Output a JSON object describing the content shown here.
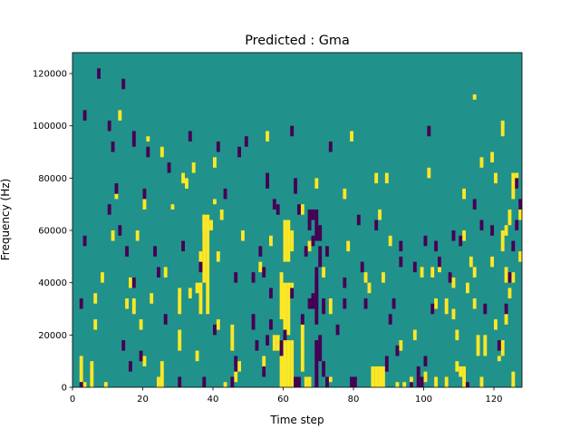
{
  "chart_data": {
    "type": "heatmap",
    "title": "Predicted : Gma",
    "xlabel": "Time step",
    "ylabel": "Frequency (Hz)",
    "xlim": [
      0,
      128
    ],
    "ylim": [
      0,
      128000
    ],
    "x_ticks": [
      0,
      20,
      40,
      60,
      80,
      100,
      120
    ],
    "y_ticks": [
      0,
      20000,
      40000,
      60000,
      80000,
      100000,
      120000
    ],
    "y_tick_labels": [
      "0",
      "20000",
      "40000",
      "60000",
      "80000",
      "100000",
      "120000"
    ],
    "grid": false,
    "legend": "none",
    "n_time_steps": 128,
    "n_freq_bins": 64,
    "freq_bin_width_hz": 2000,
    "colors": {
      "background": "#21918c",
      "low": "#440154",
      "high": "#fde725"
    },
    "cell_value_legend": {
      "low": -1,
      "mid": 0,
      "high": 1
    },
    "high_cells": [
      [
        2,
        1,
        5
      ],
      [
        3,
        0,
        0
      ],
      [
        5,
        0,
        4
      ],
      [
        6,
        11,
        12
      ],
      [
        6,
        16,
        17
      ],
      [
        8,
        20,
        21
      ],
      [
        9,
        0,
        0
      ],
      [
        11,
        28,
        29
      ],
      [
        12,
        36,
        36
      ],
      [
        13,
        51,
        52
      ],
      [
        15,
        15,
        16
      ],
      [
        16,
        19,
        20
      ],
      [
        17,
        14,
        16
      ],
      [
        18,
        28,
        29
      ],
      [
        19,
        11,
        12
      ],
      [
        20,
        34,
        35
      ],
      [
        20,
        4,
        5
      ],
      [
        21,
        47,
        47
      ],
      [
        22,
        16,
        17
      ],
      [
        24,
        0,
        1
      ],
      [
        25,
        44,
        45
      ],
      [
        25,
        0,
        4
      ],
      [
        26,
        21,
        22
      ],
      [
        28,
        34,
        34
      ],
      [
        30,
        7,
        10
      ],
      [
        30,
        14,
        18
      ],
      [
        31,
        39,
        40
      ],
      [
        32,
        38,
        39
      ],
      [
        33,
        17,
        18
      ],
      [
        34,
        41,
        42
      ],
      [
        35,
        5,
        6
      ],
      [
        35,
        18,
        19
      ],
      [
        36,
        14,
        19
      ],
      [
        36,
        23,
        25
      ],
      [
        37,
        20,
        32
      ],
      [
        37,
        30,
        32
      ],
      [
        38,
        14,
        32
      ],
      [
        39,
        30,
        31
      ],
      [
        40,
        35,
        35
      ],
      [
        40,
        42,
        43
      ],
      [
        41,
        11,
        12
      ],
      [
        41,
        24,
        25
      ],
      [
        42,
        32,
        33
      ],
      [
        43,
        0,
        0
      ],
      [
        45,
        7,
        11
      ],
      [
        46,
        1,
        3
      ],
      [
        47,
        3,
        4
      ],
      [
        48,
        28,
        29
      ],
      [
        53,
        22,
        23
      ],
      [
        54,
        3,
        5
      ],
      [
        55,
        47,
        48
      ],
      [
        56,
        27,
        28
      ],
      [
        57,
        7,
        9
      ],
      [
        58,
        7,
        9
      ],
      [
        59,
        0,
        8
      ],
      [
        59,
        13,
        21
      ],
      [
        60,
        0,
        8
      ],
      [
        60,
        10,
        19
      ],
      [
        60,
        24,
        31
      ],
      [
        61,
        0,
        8
      ],
      [
        61,
        10,
        19
      ],
      [
        61,
        24,
        31
      ],
      [
        62,
        18,
        19
      ],
      [
        62,
        26,
        29
      ],
      [
        62,
        0,
        8
      ],
      [
        65,
        3,
        11
      ],
      [
        65,
        33,
        34
      ],
      [
        66,
        0,
        1
      ],
      [
        67,
        0,
        1
      ],
      [
        67,
        26,
        27
      ],
      [
        69,
        38,
        39
      ],
      [
        71,
        21,
        22
      ],
      [
        73,
        1,
        1
      ],
      [
        73,
        14,
        16
      ],
      [
        77,
        36,
        37
      ],
      [
        78,
        26,
        27
      ],
      [
        79,
        47,
        48
      ],
      [
        80,
        0,
        0
      ],
      [
        83,
        20,
        21
      ],
      [
        84,
        18,
        19
      ],
      [
        85,
        0,
        3
      ],
      [
        86,
        0,
        3
      ],
      [
        86,
        39,
        40
      ],
      [
        87,
        0,
        3
      ],
      [
        87,
        32,
        33
      ],
      [
        88,
        0,
        3
      ],
      [
        88,
        20,
        21
      ],
      [
        89,
        39,
        40
      ],
      [
        90,
        27,
        28
      ],
      [
        92,
        0,
        0
      ],
      [
        93,
        7,
        8
      ],
      [
        94,
        0,
        0
      ],
      [
        96,
        0,
        1
      ],
      [
        97,
        9,
        10
      ],
      [
        99,
        21,
        22
      ],
      [
        101,
        40,
        41
      ],
      [
        102,
        21,
        22
      ],
      [
        103,
        0,
        1
      ],
      [
        104,
        22,
        24
      ],
      [
        106,
        0,
        1
      ],
      [
        108,
        13,
        14
      ],
      [
        108,
        19,
        20
      ],
      [
        109,
        3,
        4
      ],
      [
        110,
        2,
        3
      ],
      [
        111,
        0,
        3
      ],
      [
        111,
        28,
        29
      ],
      [
        112,
        18,
        19
      ],
      [
        113,
        23,
        24
      ],
      [
        114,
        21,
        22
      ],
      [
        114,
        15,
        16
      ],
      [
        114,
        55,
        55
      ],
      [
        115,
        6,
        9
      ],
      [
        116,
        0,
        1
      ],
      [
        117,
        6,
        9
      ],
      [
        119,
        23,
        24
      ],
      [
        119,
        43,
        44
      ],
      [
        120,
        11,
        12
      ],
      [
        121,
        5,
        5
      ],
      [
        122,
        6,
        8
      ],
      [
        123,
        12,
        14
      ],
      [
        123,
        20,
        22
      ],
      [
        124,
        31,
        33
      ],
      [
        125,
        20,
        21
      ],
      [
        125,
        0,
        2
      ],
      [
        125,
        36,
        37
      ],
      [
        100,
        1,
        2
      ],
      [
        103,
        15,
        16
      ],
      [
        106,
        14,
        16
      ],
      [
        109,
        9,
        10
      ],
      [
        111,
        36,
        37
      ],
      [
        116,
        42,
        43
      ],
      [
        120,
        39,
        40
      ],
      [
        122,
        26,
        29
      ],
      [
        122,
        48,
        50
      ],
      [
        123,
        29,
        30
      ],
      [
        124,
        17,
        18
      ],
      [
        125,
        38,
        40
      ],
      [
        126,
        38,
        40
      ],
      [
        127,
        24,
        25
      ],
      [
        127,
        32,
        34
      ]
    ],
    "low_cells": [
      [
        2,
        0,
        0
      ],
      [
        2,
        15,
        16
      ],
      [
        3,
        51,
        52
      ],
      [
        3,
        27,
        28
      ],
      [
        7,
        59,
        60
      ],
      [
        10,
        49,
        50
      ],
      [
        10,
        33,
        34
      ],
      [
        11,
        45,
        46
      ],
      [
        12,
        37,
        38
      ],
      [
        13,
        29,
        30
      ],
      [
        14,
        7,
        8
      ],
      [
        14,
        57,
        58
      ],
      [
        15,
        25,
        26
      ],
      [
        16,
        3,
        4
      ],
      [
        17,
        19,
        20
      ],
      [
        17,
        46,
        48
      ],
      [
        19,
        5,
        6
      ],
      [
        20,
        36,
        37
      ],
      [
        21,
        44,
        45
      ],
      [
        23,
        25,
        26
      ],
      [
        24,
        21,
        22
      ],
      [
        26,
        12,
        13
      ],
      [
        27,
        41,
        42
      ],
      [
        30,
        0,
        1
      ],
      [
        31,
        26,
        27
      ],
      [
        33,
        47,
        48
      ],
      [
        36,
        22,
        23
      ],
      [
        37,
        0,
        1
      ],
      [
        40,
        10,
        11
      ],
      [
        41,
        45,
        46
      ],
      [
        45,
        0,
        1
      ],
      [
        46,
        20,
        21
      ],
      [
        46,
        3,
        5
      ],
      [
        47,
        44,
        45
      ],
      [
        49,
        46,
        47
      ],
      [
        51,
        11,
        13
      ],
      [
        51,
        20,
        21
      ],
      [
        52,
        7,
        8
      ],
      [
        53,
        25,
        26
      ],
      [
        54,
        21,
        22
      ],
      [
        54,
        2,
        3
      ],
      [
        55,
        8,
        9
      ],
      [
        55,
        38,
        40
      ],
      [
        56,
        11,
        12
      ],
      [
        56,
        17,
        18
      ],
      [
        57,
        34,
        35
      ],
      [
        58,
        33,
        34
      ],
      [
        59,
        6,
        8
      ],
      [
        60,
        9,
        10
      ],
      [
        62,
        17,
        18
      ],
      [
        62,
        48,
        49
      ],
      [
        63,
        0,
        1
      ],
      [
        64,
        0,
        1
      ],
      [
        64,
        33,
        34
      ],
      [
        65,
        12,
        13
      ],
      [
        66,
        25,
        26
      ],
      [
        67,
        32,
        33
      ],
      [
        67,
        15,
        16
      ],
      [
        68,
        15,
        17
      ],
      [
        68,
        27,
        28
      ],
      [
        69,
        0,
        8
      ],
      [
        69,
        12,
        22
      ],
      [
        69,
        28,
        33
      ],
      [
        69,
        15,
        20
      ],
      [
        70,
        5,
        9
      ],
      [
        70,
        28,
        30
      ],
      [
        71,
        2,
        4
      ],
      [
        72,
        0,
        1
      ],
      [
        72,
        25,
        26
      ],
      [
        73,
        45,
        46
      ],
      [
        75,
        10,
        11
      ],
      [
        77,
        15,
        16
      ],
      [
        77,
        19,
        20
      ],
      [
        79,
        0,
        1
      ],
      [
        80,
        0,
        1
      ],
      [
        81,
        31,
        32
      ],
      [
        82,
        22,
        23
      ],
      [
        83,
        15,
        16
      ],
      [
        86,
        30,
        31
      ],
      [
        89,
        3,
        5
      ],
      [
        90,
        12,
        13
      ],
      [
        91,
        15,
        16
      ],
      [
        92,
        6,
        7
      ],
      [
        93,
        23,
        24
      ],
      [
        96,
        0,
        0
      ],
      [
        97,
        22,
        23
      ],
      [
        98,
        0,
        3
      ],
      [
        99,
        0,
        1
      ],
      [
        100,
        4,
        5
      ],
      [
        101,
        48,
        49
      ],
      [
        102,
        14,
        15
      ],
      [
        103,
        26,
        27
      ],
      [
        104,
        23,
        24
      ],
      [
        107,
        20,
        21
      ],
      [
        108,
        28,
        29
      ],
      [
        110,
        27,
        28
      ],
      [
        112,
        0,
        0
      ],
      [
        114,
        34,
        35
      ],
      [
        116,
        30,
        31
      ],
      [
        117,
        14,
        15
      ],
      [
        119,
        29,
        30
      ],
      [
        121,
        7,
        8
      ],
      [
        123,
        14,
        15
      ],
      [
        124,
        20,
        21
      ],
      [
        125,
        26,
        27
      ],
      [
        126,
        30,
        31
      ],
      [
        126,
        38,
        39
      ],
      [
        127,
        34,
        35
      ],
      [
        69,
        0,
        8
      ],
      [
        70,
        23,
        26
      ],
      [
        67,
        30,
        31
      ],
      [
        71,
        14,
        16
      ],
      [
        68,
        32,
        33
      ],
      [
        63,
        37,
        39
      ],
      [
        43,
        36,
        37
      ],
      [
        100,
        27,
        28
      ],
      [
        93,
        26,
        27
      ]
    ]
  }
}
